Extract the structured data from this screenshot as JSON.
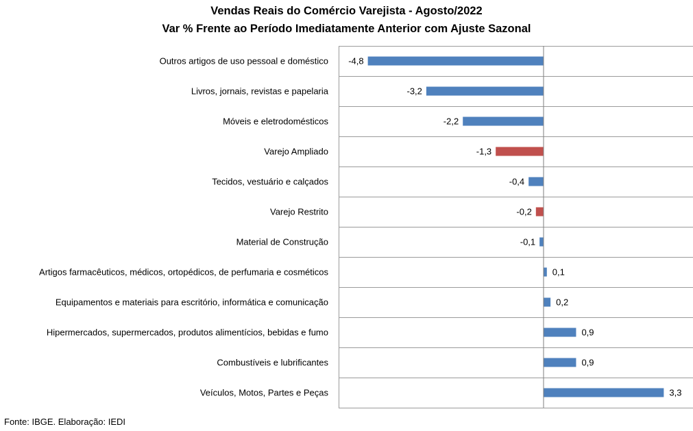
{
  "chart_data": {
    "type": "bar",
    "orientation": "horizontal",
    "title": "Vendas Reais do Comércio Varejista - Agosto/2022",
    "subtitle": "Var % Frente ao Período Imediatamente Anterior com Ajuste Sazonal",
    "categories": [
      "Outros artigos de uso pessoal e doméstico",
      "Livros, jornais, revistas e papelaria",
      "Móveis e eletrodomésticos",
      "Varejo Ampliado",
      "Tecidos, vestuário e calçados",
      "Varejo Restrito",
      "Material de Construção",
      "Artigos farmacêuticos, médicos, ortopédicos, de perfumaria e cosméticos",
      "Equipamentos e materiais para escritório, informática e comunicação",
      "Hipermercados, supermercados, produtos alimentícios, bebidas e fumo",
      "Combustíveis e lubrificantes",
      "Veículos, Motos, Partes e Peças"
    ],
    "values": [
      -4.8,
      -3.2,
      -2.2,
      -1.3,
      -0.4,
      -0.2,
      -0.1,
      0.1,
      0.2,
      0.9,
      0.9,
      3.3
    ],
    "value_labels": [
      "-4,8",
      "-3,2",
      "-2,2",
      "-1,3",
      "-0,4",
      "-0,2",
      "-0,1",
      "0,1",
      "0,2",
      "0,9",
      "0,9",
      "3,3"
    ],
    "bar_colors": [
      "#4f81bd",
      "#4f81bd",
      "#4f81bd",
      "#c0504d",
      "#4f81bd",
      "#c0504d",
      "#4f81bd",
      "#4f81bd",
      "#4f81bd",
      "#4f81bd",
      "#4f81bd",
      "#4f81bd"
    ],
    "xlim": [
      -5.6,
      4.1
    ],
    "grid": "horizontal",
    "legend": "none"
  },
  "source": "Fonte: IBGE. Elaboração: IEDI",
  "colors": {
    "primary": "#4f81bd",
    "highlight": "#c0504d",
    "grid": "#9a9a9a"
  }
}
